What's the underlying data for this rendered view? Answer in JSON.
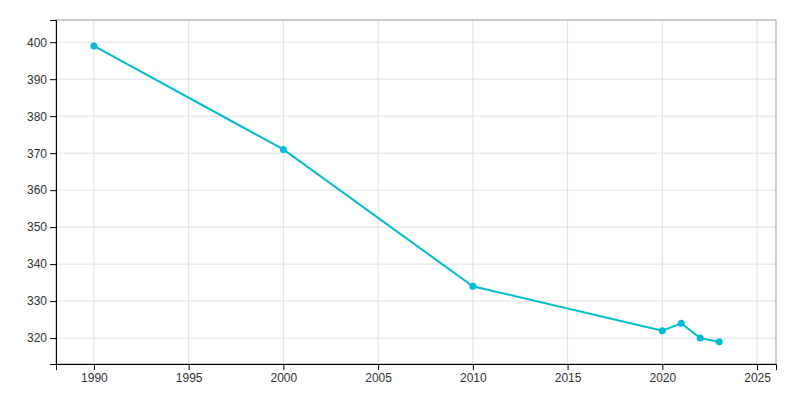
{
  "chart_data": {
    "type": "line",
    "x": [
      1990,
      2000,
      2010,
      2020,
      2021,
      2022,
      2023
    ],
    "values": [
      399,
      371,
      334,
      322,
      324,
      320,
      319
    ],
    "color": "#00BCD4",
    "marker": "circle",
    "xlim": [
      1988,
      2026
    ],
    "ylim": [
      313,
      406
    ],
    "xticks": [
      1990,
      1995,
      2000,
      2005,
      2010,
      2015,
      2020,
      2025
    ],
    "yticks": [
      320,
      330,
      340,
      350,
      360,
      370,
      380,
      390,
      400
    ],
    "grid": true
  }
}
